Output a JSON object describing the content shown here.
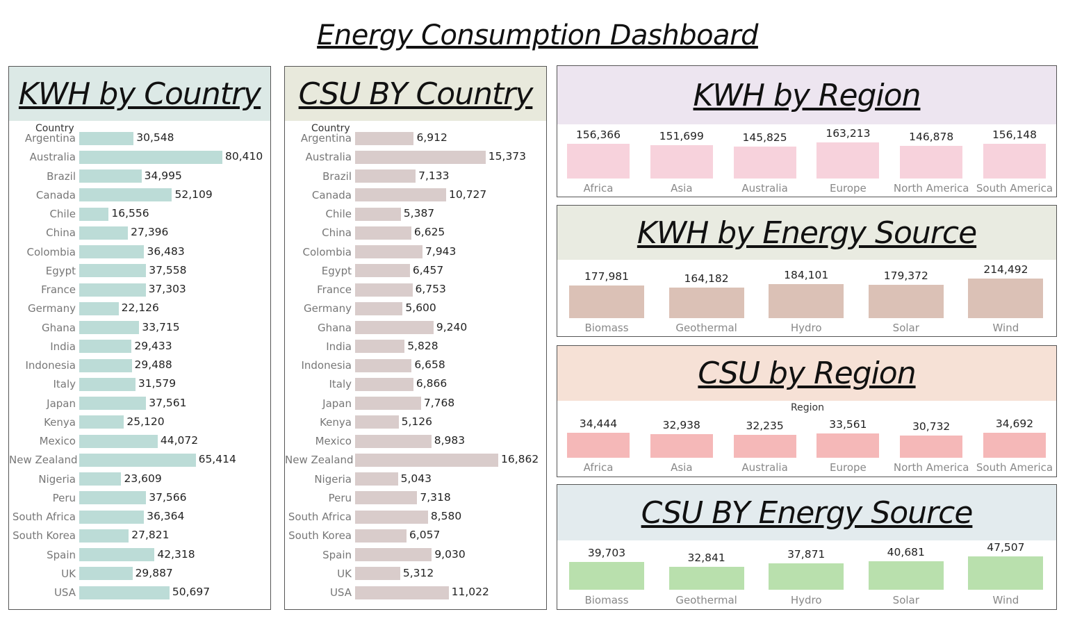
{
  "dashboard": {
    "title": "Energy Consumption Dashboard"
  },
  "colors": {
    "kwh_country_header": "#dce9e6",
    "kwh_country_bar": "#bcdcd7",
    "csu_country_header": "#e8e9dc",
    "csu_country_bar": "#d9cccb",
    "kwh_region_header": "#ede5f0",
    "kwh_region_bar": "#f7d2dc",
    "kwh_source_header": "#e9ebe1",
    "kwh_source_bar": "#dbc1b6",
    "csu_region_header": "#f6e1d6",
    "csu_region_bar": "#f5b8b8",
    "csu_source_header": "#e3ebee",
    "csu_source_bar": "#b9e0ad"
  },
  "chart_data": [
    {
      "type": "bar",
      "orientation": "horizontal",
      "title": "KWH by Country",
      "axis_header": "Country",
      "categories": [
        "Argentina",
        "Australia",
        "Brazil",
        "Canada",
        "Chile",
        "China",
        "Colombia",
        "Egypt",
        "France",
        "Germany",
        "Ghana",
        "India",
        "Indonesia",
        "Italy",
        "Japan",
        "Kenya",
        "Mexico",
        "New Zealand",
        "Nigeria",
        "Peru",
        "South Africa",
        "South Korea",
        "Spain",
        "UK",
        "USA"
      ],
      "values": [
        30548,
        80410,
        34995,
        52109,
        16556,
        27396,
        36483,
        37558,
        37303,
        22126,
        33715,
        29433,
        29488,
        31579,
        37561,
        25120,
        44072,
        65414,
        23609,
        37566,
        36364,
        27821,
        42318,
        29887,
        50697
      ],
      "labels": [
        "30,548",
        "80,410",
        "34,995",
        "52,109",
        "16,556",
        "27,396",
        "36,483",
        "37,558",
        "37,303",
        "22,126",
        "33,715",
        "29,433",
        "29,488",
        "31,579",
        "37,561",
        "25,120",
        "44,072",
        "65,414",
        "23,609",
        "37,566",
        "36,364",
        "27,821",
        "42,318",
        "29,887",
        "50,697"
      ]
    },
    {
      "type": "bar",
      "orientation": "horizontal",
      "title": "CSU BY Country",
      "axis_header": "Country",
      "categories": [
        "Argentina",
        "Australia",
        "Brazil",
        "Canada",
        "Chile",
        "China",
        "Colombia",
        "Egypt",
        "France",
        "Germany",
        "Ghana",
        "India",
        "Indonesia",
        "Italy",
        "Japan",
        "Kenya",
        "Mexico",
        "New Zealand",
        "Nigeria",
        "Peru",
        "South Africa",
        "South Korea",
        "Spain",
        "UK",
        "USA"
      ],
      "values": [
        6912,
        15373,
        7133,
        10727,
        5387,
        6625,
        7943,
        6457,
        6753,
        5600,
        9240,
        5828,
        6658,
        6866,
        7768,
        5126,
        8983,
        16862,
        5043,
        7318,
        8580,
        6057,
        9030,
        5312,
        11022
      ],
      "labels": [
        "6,912",
        "15,373",
        "7,133",
        "10,727",
        "5,387",
        "6,625",
        "7,943",
        "6,457",
        "6,753",
        "5,600",
        "9,240",
        "5,828",
        "6,658",
        "6,866",
        "7,768",
        "5,126",
        "8,983",
        "16,862",
        "5,043",
        "7,318",
        "8,580",
        "6,057",
        "9,030",
        "5,312",
        "11,022"
      ]
    },
    {
      "type": "bar",
      "orientation": "vertical",
      "title": "KWH by Region",
      "axis_header": "",
      "categories": [
        "Africa",
        "Asia",
        "Australia",
        "Europe",
        "North America",
        "South America"
      ],
      "values": [
        156366,
        151699,
        145825,
        163213,
        146878,
        156148
      ],
      "labels": [
        "156,366",
        "151,699",
        "145,825",
        "163,213",
        "146,878",
        "156,148"
      ]
    },
    {
      "type": "bar",
      "orientation": "vertical",
      "title": "KWH by Energy Source",
      "axis_header": "",
      "categories": [
        "Biomass",
        "Geothermal",
        "Hydro",
        "Solar",
        "Wind"
      ],
      "values": [
        177981,
        164182,
        184101,
        179372,
        214492
      ],
      "labels": [
        "177,981",
        "164,182",
        "184,101",
        "179,372",
        "214,492"
      ]
    },
    {
      "type": "bar",
      "orientation": "vertical",
      "title": "CSU by Region",
      "axis_header": "Region",
      "categories": [
        "Africa",
        "Asia",
        "Australia",
        "Europe",
        "North America",
        "South America"
      ],
      "values": [
        34444,
        32938,
        32235,
        33561,
        30732,
        34692
      ],
      "labels": [
        "34,444",
        "32,938",
        "32,235",
        "33,561",
        "30,732",
        "34,692"
      ]
    },
    {
      "type": "bar",
      "orientation": "vertical",
      "title": "CSU BY Energy Source",
      "axis_header": "",
      "categories": [
        "Biomass",
        "Geothermal",
        "Hydro",
        "Solar",
        "Wind"
      ],
      "values": [
        39703,
        32841,
        37871,
        40681,
        47507
      ],
      "labels": [
        "39,703",
        "32,841",
        "37,871",
        "40,681",
        "47,507"
      ]
    }
  ]
}
